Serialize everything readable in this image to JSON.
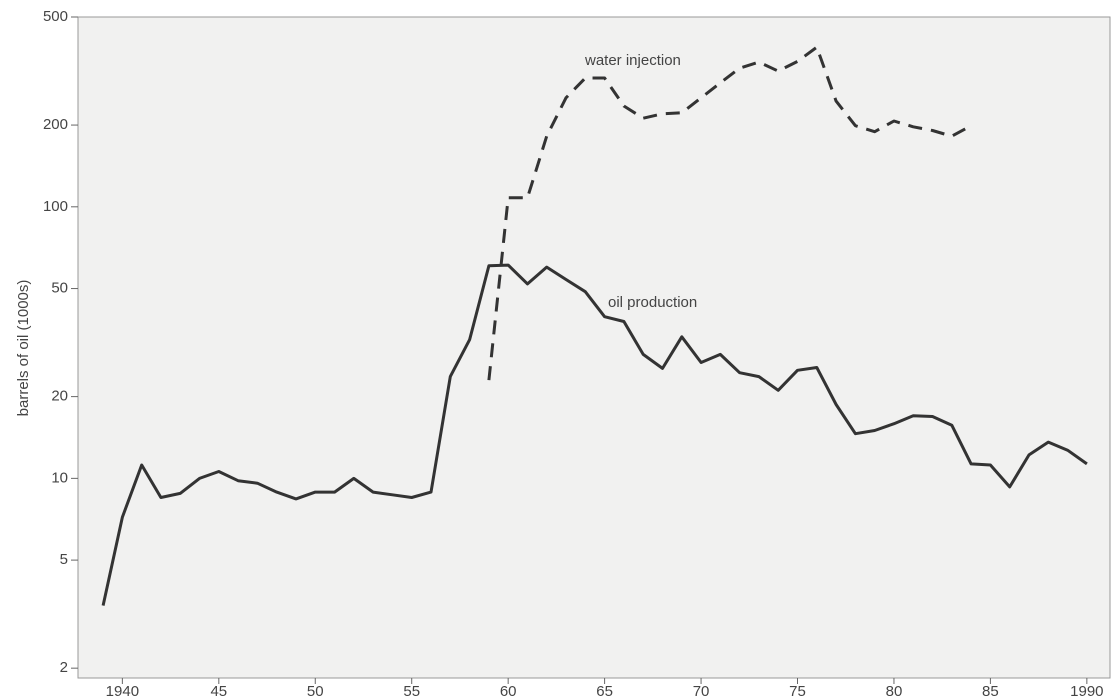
{
  "chart_data": {
    "type": "line",
    "y_label": "barrels of oil (1000s)",
    "annotations": [
      "water injection",
      "oil production"
    ],
    "log_y": true,
    "x": [
      1939,
      1940,
      1941,
      1942,
      1943,
      1944,
      1945,
      1946,
      1947,
      1948,
      1949,
      1950,
      1951,
      1952,
      1953,
      1954,
      1955,
      1956,
      1957,
      1958,
      1959,
      1960,
      1961,
      1962,
      1963,
      1964,
      1965,
      1966,
      1967,
      1968,
      1969,
      1970,
      1971,
      1972,
      1973,
      1974,
      1975,
      1976,
      1977,
      1978,
      1979,
      1980,
      1981,
      1982,
      1983,
      1984,
      1985,
      1986,
      1987,
      1988,
      1989,
      1990
    ],
    "series": [
      {
        "name": "oil production",
        "color": "#333333",
        "line_style": "solid",
        "values": [
          3.4,
          7.2,
          11.2,
          8.5,
          8.8,
          10,
          10.6,
          9.8,
          9.6,
          8.9,
          8.4,
          8.9,
          8.9,
          10,
          8.9,
          8.7,
          8.5,
          8.9,
          23.7,
          32.4,
          60.7,
          61,
          52,
          60,
          54,
          48.7,
          39.4,
          37.8,
          28.6,
          25.4,
          33.2,
          26.7,
          28.6,
          24.5,
          23.7,
          21.1,
          25,
          25.6,
          18.7,
          14.6,
          15,
          15.9,
          17,
          16.9,
          15.7,
          11.3,
          11.2,
          9.3,
          12.2,
          13.6,
          12.7,
          11.3
        ]
      },
      {
        "name": "water injection",
        "color": "#333333",
        "line_style": "dashed",
        "values": [
          null,
          null,
          null,
          null,
          null,
          null,
          null,
          null,
          null,
          null,
          null,
          null,
          null,
          null,
          null,
          null,
          null,
          null,
          null,
          null,
          23,
          108,
          108,
          182,
          252,
          298,
          298,
          235,
          212,
          220,
          222,
          252,
          286,
          324,
          341,
          316,
          343,
          387,
          245,
          199,
          189,
          207,
          197,
          191,
          182,
          199,
          null,
          null,
          null,
          null,
          null,
          null
        ]
      }
    ],
    "xlim": [
      1937.7,
      1991.2
    ],
    "xticks": [
      1940,
      {
        "value": 1945,
        "label": "45"
      },
      {
        "value": 1950,
        "label": "50"
      },
      {
        "value": 1955,
        "label": "55"
      },
      {
        "value": 1960,
        "label": "60"
      },
      {
        "value": 1965,
        "label": "65"
      },
      {
        "value": 1970,
        "label": "70"
      },
      {
        "value": 1975,
        "label": "75"
      },
      {
        "value": 1980,
        "label": "80"
      },
      {
        "value": 1985,
        "label": "85"
      },
      1990
    ],
    "ylim": [
      1.84,
      500
    ],
    "yticks": [
      2,
      5,
      10,
      20,
      50,
      100,
      200,
      500
    ]
  }
}
